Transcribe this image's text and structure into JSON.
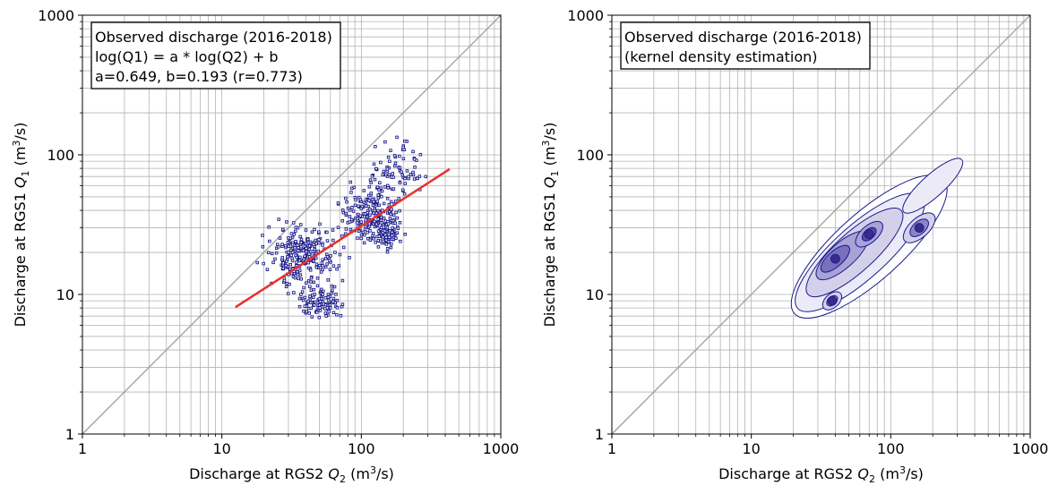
{
  "chart_data": [
    {
      "type": "scatter",
      "xscale": "log",
      "yscale": "log",
      "xlim": [
        1,
        1000
      ],
      "ylim": [
        1,
        1000
      ],
      "xticks": [
        "1",
        "10",
        "100",
        "1000"
      ],
      "yticks": [
        "1",
        "10",
        "100",
        "1000"
      ],
      "grid": true,
      "xlabel": "Discharge at RGS2 Q2 (m3/s)",
      "ylabel": "Discharge at RGS1 Q1 (m3/s)",
      "annotation": [
        "Observed discharge (2016-2018)",
        "log(Q1) = a * log(Q2) + b",
        "a=0.649, b=0.193 (r=0.773)"
      ],
      "identity_line": {
        "x": [
          1,
          1000
        ],
        "y": [
          1,
          1000
        ],
        "color": "#a0a0a0"
      },
      "fit_line": {
        "x": [
          12.5,
          430
        ],
        "y": [
          8.1,
          79
        ],
        "color": "#e8312a"
      },
      "point_color": "#1a1a8c",
      "point_clusters": [
        {
          "x": [
            16,
            90
          ],
          "y": [
            9,
            40
          ],
          "n": 260
        },
        {
          "x": [
            60,
            230
          ],
          "y": [
            18,
            70
          ],
          "n": 220
        },
        {
          "x": [
            30,
            90
          ],
          "y": [
            6,
            12
          ],
          "n": 90
        },
        {
          "x": [
            120,
            200
          ],
          "y": [
            20,
            35
          ],
          "n": 60
        },
        {
          "x": [
            100,
            320
          ],
          "y": [
            40,
            160
          ],
          "n": 80
        }
      ]
    },
    {
      "type": "contour",
      "xscale": "log",
      "yscale": "log",
      "xlim": [
        1,
        1000
      ],
      "ylim": [
        1,
        1000
      ],
      "xticks": [
        "1",
        "10",
        "100",
        "1000"
      ],
      "yticks": [
        "1",
        "10",
        "100",
        "1000"
      ],
      "grid": true,
      "xlabel": "Discharge at RGS2 Q2 (m3/s)",
      "ylabel": "Discharge at RGS1 Q1 (m3/s)",
      "annotation": [
        "Observed discharge (2016-2018)",
        "(kernel density estimation)"
      ],
      "identity_line": {
        "x": [
          1,
          1000
        ],
        "y": [
          1,
          1000
        ],
        "color": "#a0a0a0"
      },
      "contour_color": "#1a1a8c",
      "density_peaks": [
        {
          "x": 40,
          "y": 18
        },
        {
          "x": 70,
          "y": 27
        },
        {
          "x": 160,
          "y": 30
        },
        {
          "x": 38,
          "y": 9
        }
      ]
    }
  ]
}
